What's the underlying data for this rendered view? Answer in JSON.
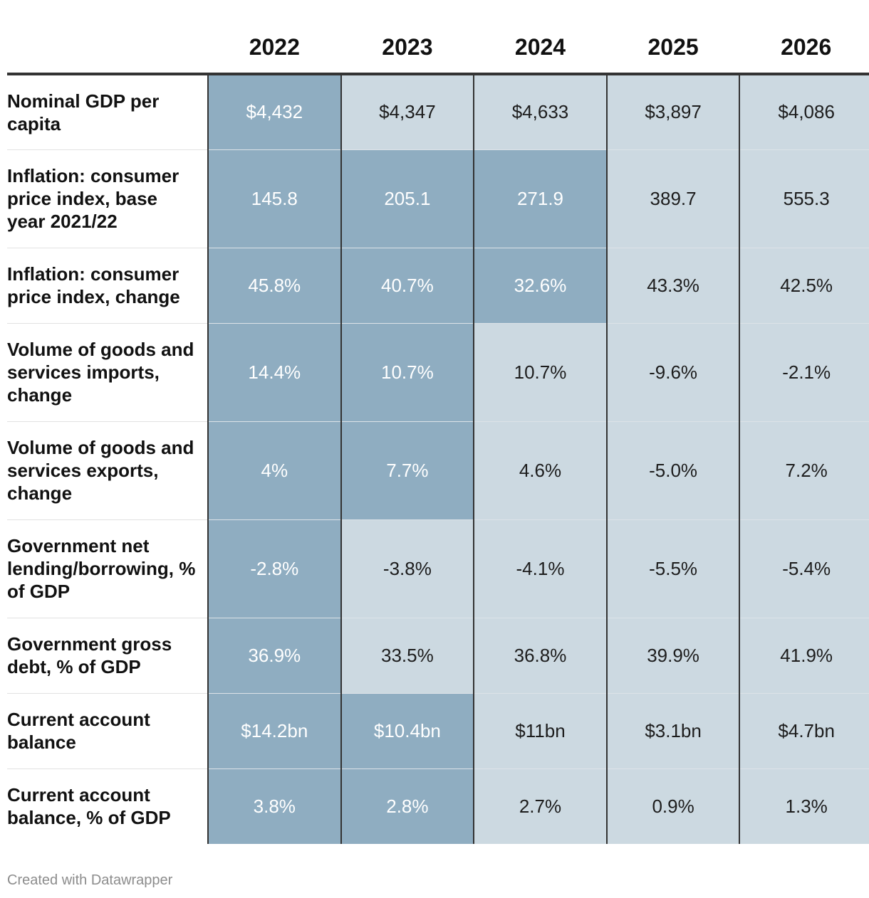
{
  "chart_data": {
    "type": "table",
    "columns": [
      "2022",
      "2023",
      "2024",
      "2025",
      "2026"
    ],
    "rows": [
      {
        "label": "Nominal GDP per capita",
        "values": [
          "$4,432",
          "$4,347",
          "$4,633",
          "$3,897",
          "$4,086"
        ],
        "highlight": [
          true,
          false,
          false,
          false,
          false
        ]
      },
      {
        "label": "Inflation: consumer price index, base year 2021/22",
        "values": [
          "145.8",
          "205.1",
          "271.9",
          "389.7",
          "555.3"
        ],
        "highlight": [
          true,
          true,
          true,
          false,
          false
        ]
      },
      {
        "label": "Inflation: consumer price index, change",
        "values": [
          "45.8%",
          "40.7%",
          "32.6%",
          "43.3%",
          "42.5%"
        ],
        "highlight": [
          true,
          true,
          true,
          false,
          false
        ]
      },
      {
        "label": "Volume of goods and services imports, change",
        "values": [
          "14.4%",
          "10.7%",
          "10.7%",
          "-9.6%",
          "-2.1%"
        ],
        "highlight": [
          true,
          true,
          false,
          false,
          false
        ]
      },
      {
        "label": "Volume of goods and services exports, change",
        "values": [
          "4%",
          "7.7%",
          "4.6%",
          "-5.0%",
          "7.2%"
        ],
        "highlight": [
          true,
          true,
          false,
          false,
          false
        ]
      },
      {
        "label": "Government net lending/borrowing, % of GDP",
        "values": [
          "-2.8%",
          "-3.8%",
          "-4.1%",
          "-5.5%",
          "-5.4%"
        ],
        "highlight": [
          true,
          false,
          false,
          false,
          false
        ]
      },
      {
        "label": "Government gross debt, % of GDP",
        "values": [
          "36.9%",
          "33.5%",
          "36.8%",
          "39.9%",
          "41.9%"
        ],
        "highlight": [
          true,
          false,
          false,
          false,
          false
        ]
      },
      {
        "label": "Current account balance",
        "values": [
          "$14.2bn",
          "$10.4bn",
          "$11bn",
          "$3.1bn",
          "$4.7bn"
        ],
        "highlight": [
          true,
          true,
          false,
          false,
          false
        ]
      },
      {
        "label": "Current account balance, % of GDP",
        "values": [
          "3.8%",
          "2.8%",
          "2.7%",
          "0.9%",
          "1.3%"
        ],
        "highlight": [
          true,
          true,
          false,
          false,
          false
        ]
      }
    ],
    "colors": {
      "highlight": "#8fadc1",
      "base": "#ccd9e1"
    }
  },
  "footer": {
    "credit": "Created with Datawrapper"
  }
}
